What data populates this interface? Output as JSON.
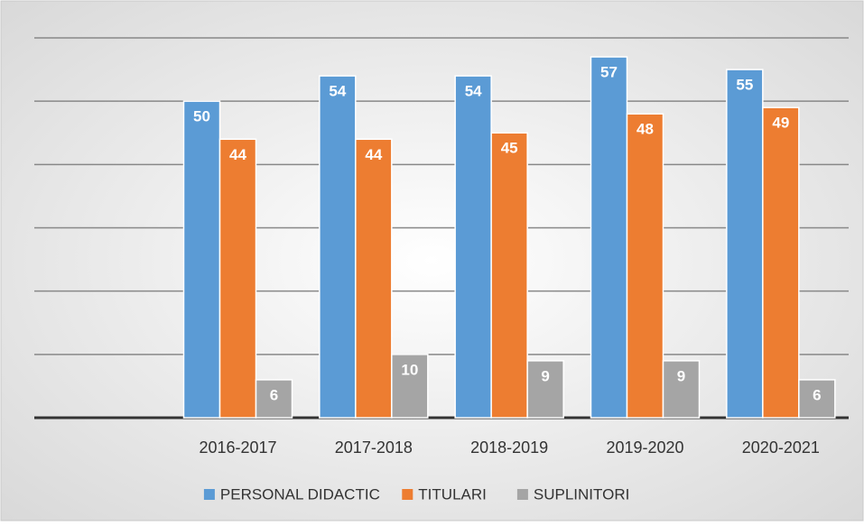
{
  "chart_data": {
    "type": "bar",
    "categories": [
      null,
      "2016-2017",
      "2017-2018",
      "2018-2019",
      "2019-2020",
      "2020-2021"
    ],
    "series": [
      {
        "name": "PERSONAL DIDACTIC",
        "color": "#5b9bd5",
        "values": [
          null,
          50,
          54,
          54,
          57,
          55
        ]
      },
      {
        "name": "TITULARI",
        "color": "#ed7d31",
        "values": [
          null,
          44,
          44,
          45,
          48,
          49
        ]
      },
      {
        "name": "SUPLINITORI",
        "color": "#a5a5a5",
        "values": [
          null,
          6,
          10,
          9,
          9,
          6
        ]
      }
    ],
    "ylim": [
      0,
      60
    ],
    "yticks": [
      0,
      10,
      20,
      30,
      40,
      50,
      60
    ],
    "grid": true,
    "legend": "bottom"
  }
}
